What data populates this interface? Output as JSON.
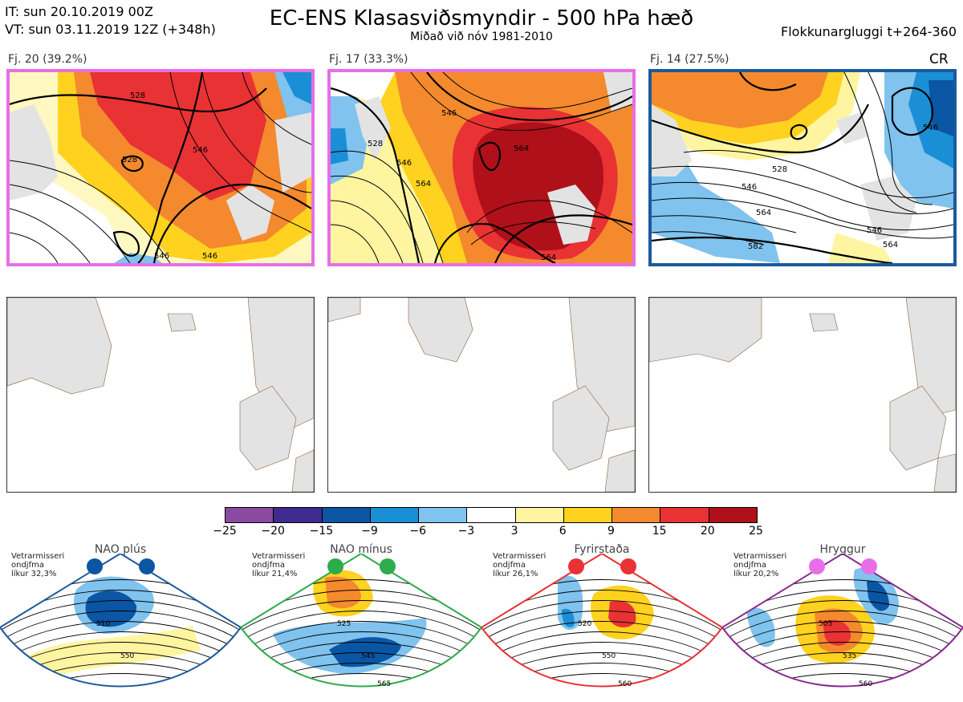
{
  "header": {
    "it_line": "IT: sun 20.10.2019 00Z",
    "vt_line": "VT: sun 03.11.2019 12Z  (+348h)",
    "title": "EC-ENS Klasasviðsmyndir - 500 hPa hæð",
    "subtitle": "Miðað við nóv 1981-2010",
    "window": "Flokkunargluggi t+264-360"
  },
  "panels": [
    {
      "label": "Fj. 20 (39.2%)",
      "border_color": "#e86ee8",
      "contours": [
        "528",
        "546",
        "528",
        "546",
        "546"
      ]
    },
    {
      "label": "Fj. 17 (33.3%)",
      "border_color": "#e86ee8",
      "contours": [
        "546",
        "564",
        "528",
        "564",
        "546",
        "564"
      ]
    },
    {
      "label": "Fj. 14 (27.5%)",
      "border_color": "#1c5a9c",
      "tag": "CR",
      "contours": [
        "546",
        "528",
        "546",
        "564",
        "546",
        "582",
        "564"
      ]
    }
  ],
  "colorbar": {
    "ticks": [
      "−25",
      "−20",
      "−15",
      "−9",
      "−6",
      "−3",
      "3",
      "6",
      "9",
      "15",
      "20",
      "25"
    ],
    "colors": [
      "#8a4aa0",
      "#3f2a8f",
      "#0b56a4",
      "#1a8fd6",
      "#7fc3ee",
      "#ffffff",
      "#fff5a0",
      "#ffd21f",
      "#f4892e",
      "#e83234",
      "#b01019"
    ]
  },
  "categories": [
    {
      "title": "NAO plús",
      "note": [
        "Vetrarmisseri",
        "ondjfma",
        "líkur 32,3%"
      ],
      "color": "#1c5a9c",
      "dot": "#0b56a4",
      "contours": [
        "510",
        "550"
      ]
    },
    {
      "title": "NAO mínus",
      "note": [
        "Vetrarmisseri",
        "ondjfma",
        "líkur 21,4%"
      ],
      "color": "#2eab4a",
      "dot": "#2eab4a",
      "contours": [
        "525",
        "545",
        "565"
      ]
    },
    {
      "title": "Fyrirstaða",
      "note": [
        "Vetrarmisseri",
        "ondjfma",
        "líkur 26,1%"
      ],
      "color": "#e83234",
      "dot": "#e83234",
      "contours": [
        "520",
        "550",
        "560"
      ]
    },
    {
      "title": "Hryggur",
      "note": [
        "Vetrarmisseri",
        "ondjfma",
        "líkur 20,2%"
      ],
      "color": "#8a2a8f",
      "dot": "#e86ee8",
      "contours": [
        "505",
        "535",
        "560"
      ]
    }
  ]
}
